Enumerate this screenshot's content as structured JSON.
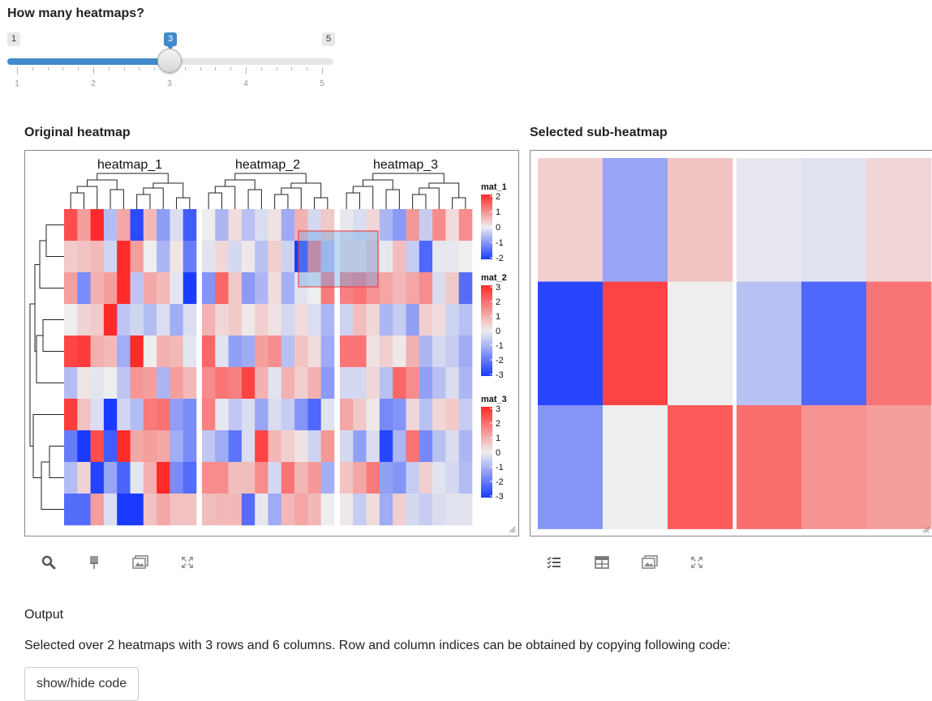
{
  "slider": {
    "label": "How many heatmaps?",
    "min_label": "1",
    "max_label": "5",
    "value_label": "3",
    "value": 3,
    "min": 1,
    "max": 5,
    "grid_labels": [
      "1",
      "2",
      "3",
      "4",
      "5"
    ]
  },
  "original_panel": {
    "title": "Original heatmap",
    "heatmap_titles": [
      "heatmap_1",
      "heatmap_2",
      "heatmap_3"
    ],
    "legends": [
      {
        "title": "mat_1",
        "ticks": [
          "2",
          "1",
          "0",
          "-1",
          "-2"
        ]
      },
      {
        "title": "mat_2",
        "ticks": [
          "3",
          "2",
          "1",
          "0",
          "-1",
          "-2",
          "-3"
        ]
      },
      {
        "title": "mat_3",
        "ticks": [
          "3",
          "2",
          "1",
          "0",
          "-1",
          "-2",
          "-3"
        ]
      }
    ],
    "matrices": [
      [
        [
          1.8,
          0.9,
          2.8,
          -0.6,
          0.8,
          -2.0,
          0.6,
          -1.0,
          -0.2,
          -1.8
        ],
        [
          0.4,
          0.5,
          0.6,
          -0.3,
          2.4,
          0.9,
          0.0,
          -0.7,
          0.1,
          -1.4
        ],
        [
          0.9,
          -1.2,
          0.7,
          0.9,
          2.2,
          -0.5,
          0.8,
          0.6,
          -0.1,
          -3.5
        ],
        [
          0.0,
          0.3,
          0.4,
          2.8,
          -0.5,
          -0.3,
          -0.6,
          -0.2,
          -0.8,
          -0.2
        ],
        [
          1.9,
          2.0,
          0.7,
          0.6,
          -0.8,
          2.4,
          0.0,
          0.7,
          0.6,
          -0.1
        ],
        [
          -0.6,
          0.1,
          -0.1,
          0.0,
          -0.5,
          1.0,
          0.9,
          -0.7,
          0.9,
          0.6
        ],
        [
          2.0,
          0.5,
          -0.2,
          -2.2,
          -0.3,
          -0.6,
          1.3,
          1.4,
          -1.0,
          -1.2
        ],
        [
          -1.4,
          -2.2,
          1.8,
          -1.8,
          2.6,
          0.8,
          0.9,
          0.8,
          -0.8,
          -1.2
        ],
        [
          -0.6,
          0.3,
          -2.1,
          -0.9,
          -1.7,
          -0.1,
          0.7,
          2.3,
          -1.2,
          -1.6
        ],
        [
          -1.6,
          -1.6,
          0.9,
          -0.2,
          -2.3,
          -3.2,
          0.5,
          0.8,
          0.5,
          0.5
        ]
      ],
      [
        [
          0.0,
          -1.0,
          0.3,
          -0.8,
          -0.3,
          0.2,
          -1.2,
          1.0,
          -0.4,
          0.6
        ],
        [
          -0.2,
          0.4,
          -0.4,
          0.1,
          -0.8,
          0.5,
          -0.5,
          -3.5,
          2.0,
          -0.8
        ],
        [
          -1.6,
          2.2,
          0.6,
          -1.5,
          -1.0,
          0.3,
          -1.1,
          -0.2,
          0.0,
          1.9
        ],
        [
          1.0,
          0.4,
          0.6,
          0.1,
          0.5,
          0.2,
          -0.4,
          0.3,
          -0.3,
          -1.0
        ],
        [
          2.2,
          -0.2,
          -1.4,
          -1.2,
          1.3,
          1.6,
          -0.8,
          0.7,
          0.3,
          -1.2
        ],
        [
          1.6,
          2.0,
          1.8,
          2.8,
          1.0,
          -0.2,
          1.0,
          0.5,
          1.0,
          -1.5
        ],
        [
          1.8,
          -0.1,
          -0.7,
          -0.3,
          -1.3,
          -0.3,
          -0.6,
          -1.6,
          -2.4,
          -0.2
        ],
        [
          -0.7,
          -1.2,
          -2.2,
          -0.3,
          2.8,
          0.9,
          0.5,
          0.2,
          -0.5,
          1.4
        ],
        [
          1.6,
          1.6,
          0.8,
          0.8,
          1.6,
          -0.4,
          2.0,
          0.9,
          1.4,
          -1.1
        ],
        [
          0.8,
          0.9,
          0.9,
          -2.3,
          -0.1,
          -1.2,
          0.9,
          1.2,
          0.9,
          0.0
        ]
      ],
      [
        [
          -0.1,
          -0.3,
          0.4,
          -1.0,
          -1.5,
          1.4,
          -0.6,
          1.6,
          0.3,
          1.6
        ],
        [
          0.2,
          0.2,
          0.6,
          -0.1,
          0.8,
          -0.6,
          -2.4,
          -0.1,
          -0.1,
          0.0
        ],
        [
          1.8,
          2.0,
          1.5,
          1.2,
          0.9,
          1.2,
          1.6,
          -0.3,
          0.6,
          -2.3
        ],
        [
          -0.5,
          0.8,
          0.4,
          -1.0,
          -0.6,
          -1.4,
          0.5,
          0.3,
          -0.5,
          -0.8
        ],
        [
          2.0,
          2.0,
          0.2,
          0.5,
          0.1,
          1.0,
          -1.0,
          -0.4,
          -0.6,
          -1.2
        ],
        [
          -0.4,
          -0.4,
          0.4,
          -0.8,
          2.2,
          1.6,
          -1.4,
          -0.8,
          -0.3,
          -1.0
        ],
        [
          1.2,
          0.6,
          0.1,
          -1.8,
          -1.6,
          0.4,
          -0.8,
          0.4,
          0.6,
          -0.6
        ],
        [
          -0.4,
          -1.4,
          -0.3,
          -3.0,
          -1.0,
          2.0,
          -1.8,
          -0.8,
          -0.3,
          -1.0
        ],
        [
          0.7,
          1.2,
          1.9,
          -1.4,
          -1.6,
          -0.6,
          0.5,
          -0.2,
          -0.4,
          -0.9
        ],
        [
          0.1,
          -0.6,
          0.3,
          -1.2,
          0.5,
          -0.4,
          -0.6,
          -0.3,
          -0.2,
          -0.2
        ]
      ]
    ]
  },
  "selected_panel": {
    "title": "Selected sub-heatmap",
    "blocks": [
      [
        [
          0.5,
          -1.3,
          0.7
        ],
        [
          -3.0,
          2.8,
          0.0
        ],
        [
          -1.6,
          0.0,
          2.4
        ]
      ],
      [
        [
          -0.1,
          -0.2,
          0.4
        ],
        [
          -0.8,
          -2.4,
          2.0
        ],
        [
          2.1,
          1.5,
          1.3
        ]
      ]
    ]
  },
  "colors": {
    "high": "#ff2a2a",
    "mid": "#eeeeee",
    "low": "#1a3bff",
    "accent": "#428bca"
  },
  "toolbar_left": [
    "search-icon",
    "brush-icon",
    "image-download-icon",
    "expand-icon"
  ],
  "toolbar_right": [
    "checklist-icon",
    "table-icon",
    "image-download-icon",
    "expand-icon"
  ],
  "output": {
    "title": "Output",
    "text": "Selected over 2 heatmaps with 3 rows and 6 columns. Row and column indices can be obtained by copying following code:",
    "button_label": "show/hide code"
  }
}
